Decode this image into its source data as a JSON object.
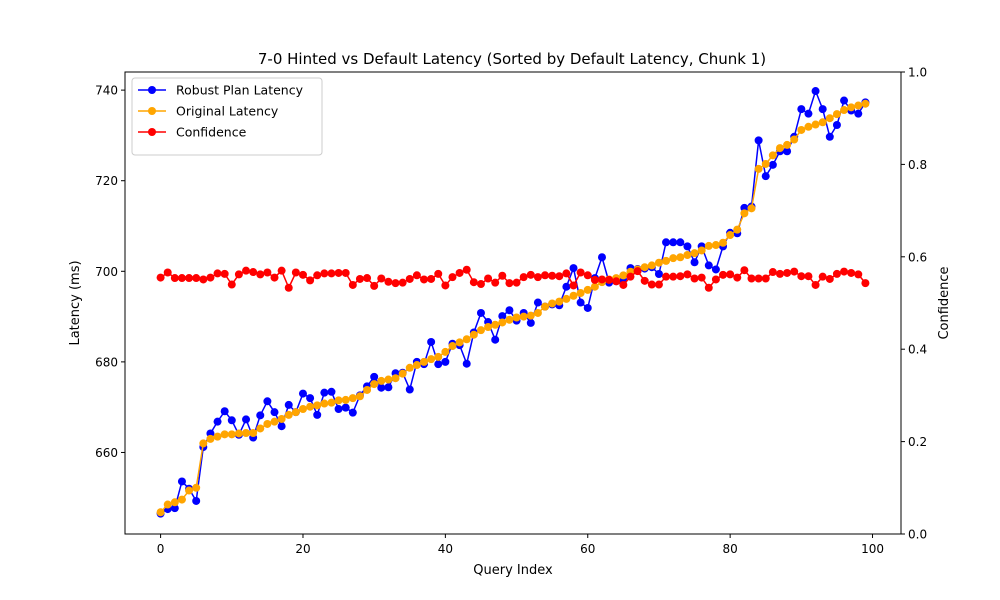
{
  "chart_data": {
    "type": "line",
    "title": "7-0 Hinted vs Default Latency (Sorted by Default Latency, Chunk 1)",
    "xlabel": "Query Index",
    "ylabel": "Latency (ms)",
    "y2label": "Confidence",
    "xlim": [
      -5,
      104
    ],
    "ylim": [
      642,
      744
    ],
    "y2lim": [
      0.0,
      1.0
    ],
    "xticks": [
      "0",
      "20",
      "40",
      "60",
      "80",
      "100"
    ],
    "yticks": [
      "660",
      "680",
      "700",
      "720",
      "740"
    ],
    "y2ticks": [
      "0.0",
      "0.2",
      "0.4",
      "0.6",
      "0.8",
      "1.0"
    ],
    "legend_position": "top-left",
    "grid": false,
    "series": [
      {
        "name": "Robust Plan Latency",
        "color": "#0000ff",
        "axis": "left",
        "values": [
          646.5,
          647.5,
          647.7,
          653.6,
          652.0,
          649.3,
          661.2,
          664.2,
          666.8,
          669.1,
          667.1,
          663.9,
          667.3,
          663.3,
          668.2,
          671.3,
          668.9,
          665.8,
          670.5,
          668.9,
          673.0,
          672.0,
          668.3,
          673.2,
          673.4,
          669.6,
          669.9,
          668.8,
          672.6,
          674.6,
          676.7,
          674.3,
          674.4,
          677.5,
          677.6,
          673.9,
          680.0,
          679.5,
          684.4,
          679.5,
          680.0,
          684.0,
          683.7,
          679.6,
          686.5,
          690.8,
          688.8,
          684.9,
          690.1,
          691.4,
          689.1,
          690.8,
          688.6,
          693.1,
          692.2,
          692.7,
          692.5,
          696.6,
          700.7,
          693.1,
          691.9,
          698.5,
          703.1,
          697.5,
          697.8,
          698.0,
          700.7,
          700.5,
          700.6,
          700.9,
          699.4,
          706.4,
          706.4,
          706.4,
          705.5,
          702.0,
          705.5,
          701.3,
          700.4,
          705.5,
          708.5,
          708.4,
          714.0,
          714.3,
          728.9,
          721.0,
          723.5,
          726.5,
          726.5,
          729.7,
          735.8,
          734.8,
          739.8,
          735.8,
          729.7,
          732.3,
          737.7,
          735.5,
          734.8,
          737.3
        ]
      },
      {
        "name": "Original Latency",
        "color": "#ffa500",
        "axis": "left",
        "values": [
          646.8,
          648.5,
          649.0,
          649.6,
          651.6,
          652.2,
          662.0,
          663.0,
          663.5,
          664.0,
          664.0,
          664.2,
          664.3,
          664.3,
          665.3,
          666.3,
          666.8,
          667.4,
          668.3,
          668.9,
          669.6,
          670.1,
          670.4,
          670.8,
          671.0,
          671.5,
          671.6,
          672.0,
          672.4,
          673.8,
          675.1,
          675.8,
          676.1,
          676.4,
          677.4,
          678.7,
          679.3,
          680.0,
          680.6,
          681.1,
          682.2,
          683.5,
          684.3,
          685.0,
          686.0,
          687.0,
          687.7,
          688.2,
          688.7,
          689.3,
          689.8,
          690.0,
          690.2,
          690.8,
          692.2,
          692.9,
          693.3,
          693.9,
          694.6,
          695.2,
          695.9,
          696.6,
          697.6,
          698.2,
          698.5,
          699.1,
          699.9,
          700.4,
          700.9,
          701.3,
          701.9,
          702.3,
          702.9,
          703.1,
          703.6,
          704.0,
          704.6,
          705.6,
          705.8,
          706.3,
          708.0,
          709.2,
          712.8,
          713.9,
          722.6,
          723.7,
          725.6,
          727.2,
          727.9,
          729.1,
          731.2,
          731.9,
          732.4,
          732.9,
          733.8,
          734.7,
          735.6,
          736.2,
          736.6,
          737.0
        ]
      },
      {
        "name": "Confidence",
        "color": "#ff0000",
        "axis": "right",
        "values": [
          0.555,
          0.566,
          0.554,
          0.554,
          0.554,
          0.554,
          0.551,
          0.555,
          0.564,
          0.563,
          0.54,
          0.562,
          0.57,
          0.567,
          0.562,
          0.566,
          0.555,
          0.57,
          0.533,
          0.566,
          0.561,
          0.549,
          0.56,
          0.564,
          0.564,
          0.565,
          0.565,
          0.539,
          0.552,
          0.554,
          0.537,
          0.553,
          0.546,
          0.543,
          0.544,
          0.552,
          0.56,
          0.551,
          0.552,
          0.563,
          0.538,
          0.556,
          0.565,
          0.572,
          0.545,
          0.541,
          0.553,
          0.544,
          0.559,
          0.543,
          0.544,
          0.556,
          0.561,
          0.556,
          0.56,
          0.559,
          0.558,
          0.564,
          0.538,
          0.566,
          0.56,
          0.55,
          0.551,
          0.55,
          0.547,
          0.539,
          0.557,
          0.569,
          0.548,
          0.54,
          0.54,
          0.557,
          0.557,
          0.558,
          0.562,
          0.553,
          0.555,
          0.533,
          0.551,
          0.561,
          0.562,
          0.555,
          0.571,
          0.553,
          0.553,
          0.553,
          0.567,
          0.563,
          0.565,
          0.568,
          0.558,
          0.558,
          0.539,
          0.557,
          0.552,
          0.563,
          0.568,
          0.565,
          0.562,
          0.543
        ]
      }
    ]
  }
}
